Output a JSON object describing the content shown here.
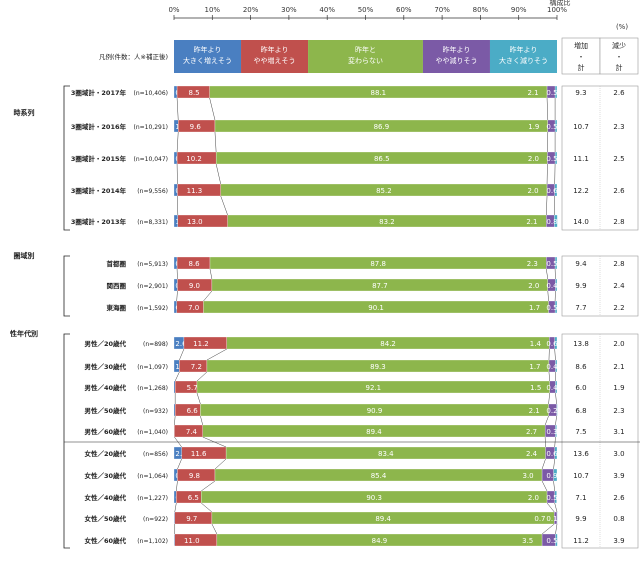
{
  "chart_data": {
    "type": "bar",
    "stacked": true,
    "orientation": "horizontal",
    "axis": {
      "ticks": [
        "0%",
        "10%",
        "20%",
        "30%",
        "40%",
        "50%",
        "60%",
        "70%",
        "80%",
        "90%",
        "100%"
      ],
      "title": "構成比",
      "unit": "(%)",
      "xlim": [
        0,
        100
      ]
    },
    "legend": {
      "title": "凡例(件数：人※補正後)",
      "items": [
        {
          "label": [
            "昨年より",
            "大きく増えそう"
          ],
          "color": "#4a7fc1"
        },
        {
          "label": [
            "昨年より",
            "やや増えそう"
          ],
          "color": "#c0504d"
        },
        {
          "label": [
            "昨年と",
            "変わらない"
          ],
          "color": "#8db64c"
        },
        {
          "label": [
            "昨年より",
            "やや減りそう"
          ],
          "color": "#7b5aa6"
        },
        {
          "label": [
            "昨年より",
            "大きく減りそう"
          ],
          "color": "#4bacc6"
        }
      ]
    },
    "side_headers": {
      "increase": [
        "増加",
        "・",
        "計"
      ],
      "decrease": [
        "減少",
        "・",
        "計"
      ]
    },
    "groups": [
      {
        "label": "時系列",
        "rows": [
          {
            "name": "3圏域計・2017年",
            "n": "(n=10,406)",
            "values": [
              0.8,
              8.5,
              88.1,
              2.1,
              0.5
            ],
            "inc": "9.3",
            "dec": "2.6"
          },
          {
            "name": "3圏域計・2016年",
            "n": "(n=10,291)",
            "values": [
              1.1,
              9.6,
              86.9,
              1.9,
              0.5
            ],
            "inc": "10.7",
            "dec": "2.3"
          },
          {
            "name": "3圏域計・2015年",
            "n": "(n=10,047)",
            "values": [
              0.8,
              10.2,
              86.5,
              2.0,
              0.5
            ],
            "inc": "11.1",
            "dec": "2.5"
          },
          {
            "name": "3圏域計・2014年",
            "n": "(n=9,556)",
            "values": [
              0.9,
              11.3,
              85.2,
              2.0,
              0.6
            ],
            "inc": "12.2",
            "dec": "2.6"
          },
          {
            "name": "3圏域計・2013年",
            "n": "(n=8,331)",
            "values": [
              1.0,
              13.0,
              83.2,
              2.1,
              0.8
            ],
            "inc": "14.0",
            "dec": "2.8"
          }
        ]
      },
      {
        "label": "圏域別",
        "rows": [
          {
            "name": "首都圏",
            "n": "(n=5,913)",
            "values": [
              0.8,
              8.6,
              87.8,
              2.3,
              0.5
            ],
            "inc": "9.4",
            "dec": "2.8"
          },
          {
            "name": "関西圏",
            "n": "(n=2,901)",
            "values": [
              0.9,
              9.0,
              87.7,
              2.0,
              0.4
            ],
            "inc": "9.9",
            "dec": "2.4"
          },
          {
            "name": "東海圏",
            "n": "(n=1,592)",
            "values": [
              0.7,
              7.0,
              90.1,
              1.7,
              0.5
            ],
            "inc": "7.7",
            "dec": "2.2"
          }
        ]
      },
      {
        "label": "性年代別",
        "rows": [
          {
            "name": "男性／20歳代",
            "n": "(n=898)",
            "values": [
              2.6,
              11.2,
              84.2,
              1.4,
              0.6
            ],
            "inc": "13.8",
            "dec": "2.0"
          },
          {
            "name": "男性／30歳代",
            "n": "(n=1,097)",
            "values": [
              1.4,
              7.2,
              89.3,
              1.7,
              0.4
            ],
            "inc": "8.6",
            "dec": "2.1"
          },
          {
            "name": "男性／40歳代",
            "n": "(n=1,268)",
            "values": [
              0.3,
              5.7,
              92.1,
              1.5,
              0.4
            ],
            "inc": "6.0",
            "dec": "1.9"
          },
          {
            "name": "男性／50歳代",
            "n": "(n=932)",
            "values": [
              0.3,
              6.6,
              90.9,
              2.1,
              0.2
            ],
            "inc": "6.8",
            "dec": "2.3"
          },
          {
            "name": "男性／60歳代",
            "n": "(n=1,040)",
            "values": [
              0.1,
              7.4,
              89.4,
              2.7,
              0.3
            ],
            "inc": "7.5",
            "dec": "3.1"
          },
          {
            "name": "女性／20歳代",
            "n": "(n=856)",
            "values": [
              2.0,
              11.6,
              83.4,
              2.4,
              0.6
            ],
            "inc": "13.6",
            "dec": "3.0"
          },
          {
            "name": "女性／30歳代",
            "n": "(n=1,064)",
            "values": [
              0.9,
              9.8,
              85.4,
              3.0,
              0.9
            ],
            "inc": "10.7",
            "dec": "3.9"
          },
          {
            "name": "女性／40歳代",
            "n": "(n=1,227)",
            "values": [
              0.6,
              6.5,
              90.3,
              2.0,
              0.5
            ],
            "inc": "7.1",
            "dec": "2.6"
          },
          {
            "name": "女性／50歳代",
            "n": "(n=922)",
            "values": [
              0.2,
              9.7,
              89.4,
              0.7,
              0.1
            ],
            "inc": "9.9",
            "dec": "0.8"
          },
          {
            "name": "女性／60歳代",
            "n": "(n=1,102)",
            "values": [
              0.2,
              11.0,
              84.9,
              3.5,
              0.5
            ],
            "inc": "11.2",
            "dec": "3.9"
          }
        ]
      }
    ]
  }
}
